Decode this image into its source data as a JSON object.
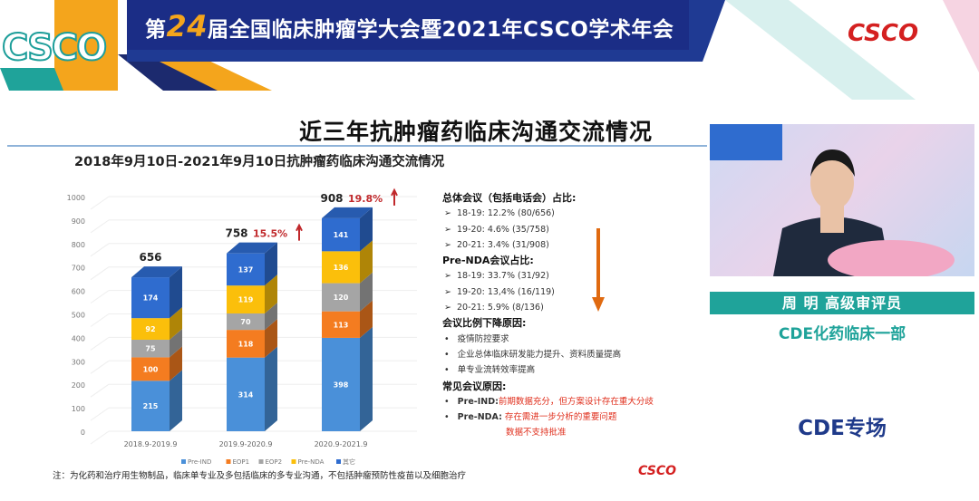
{
  "banner": {
    "prefix": "第",
    "number": "24",
    "title": "届全国临床肿瘤学大会暨2021年CSCO学术年会",
    "logo_left": "CSCO",
    "logo_right": "CSCO"
  },
  "slide": {
    "title": "近三年抗肿瘤药临床沟通交流情况",
    "subtitle": "2018年9月10日-2021年9月10日抗肿瘤药临床沟通交流情况",
    "notes": {
      "overall_heading": "总体会议（包括电话会）占比:",
      "overall": [
        "18-19:  12.2% (80/656)",
        "19-20:  4.6% (35/758)",
        "20-21:  3.4% (31/908)"
      ],
      "prenda_heading": "Pre-NDA会议占比:",
      "prenda": [
        "18-19:  33.7% (31/92)",
        "19-20:  13,4% (16/119)",
        "20-21:  5.9% (8/136)"
      ],
      "decline_heading": "会议比例下降原因:",
      "decline": [
        "疫情防控要求",
        "企业总体临床研发能力提升、资料质量提高",
        "单专业流转效率提高"
      ],
      "common_heading": "常见会议原因:",
      "common": [
        {
          "label": "Pre-IND:",
          "text": "前期数据充分，但方案设计存在重大分歧"
        },
        {
          "label": "Pre-NDA:",
          "text": "存在需进一步分析的重要问题",
          "text2": "数据不支持批准"
        }
      ],
      "arrow_color": "#e06a10"
    },
    "footnote": "注：为化药和治疗用生物制品，临床单专业及多包括临床的多专业沟通，不包括肿瘤预防性疫苗以及细胞治疗",
    "logo": "CSCO"
  },
  "speaker": {
    "name": "周 明 高级审评员",
    "dept": "CDE化药临床一部",
    "session": "CDE专场"
  },
  "chart_data": {
    "type": "bar",
    "stacked": true,
    "style": "3d",
    "categories": [
      "2018.9-2019.9",
      "2019.9-2020.9",
      "2020.9-2021.9"
    ],
    "series": [
      {
        "name": "Pre-IND",
        "color": "#4a90d9",
        "values": [
          215,
          314,
          398
        ]
      },
      {
        "name": "EOP1",
        "color": "#f47c20",
        "values": [
          100,
          118,
          113
        ]
      },
      {
        "name": "EOP2",
        "color": "#a5a5a5",
        "values": [
          75,
          70,
          120
        ]
      },
      {
        "name": "Pre-NDA",
        "color": "#fbbf0b",
        "values": [
          92,
          119,
          136
        ]
      },
      {
        "name": "其它",
        "color": "#2f6ccf",
        "values": [
          174,
          137,
          141
        ]
      }
    ],
    "totals": [
      "656",
      "758",
      "908"
    ],
    "growth": [
      "",
      "15.5%",
      "19.8%"
    ],
    "growth_color": "#c0282b",
    "ylim": [
      0,
      1000
    ],
    "yticks": [
      0,
      100,
      200,
      300,
      400,
      500,
      600,
      700,
      800,
      900,
      1000
    ],
    "grid": true,
    "legend": "bottom"
  }
}
